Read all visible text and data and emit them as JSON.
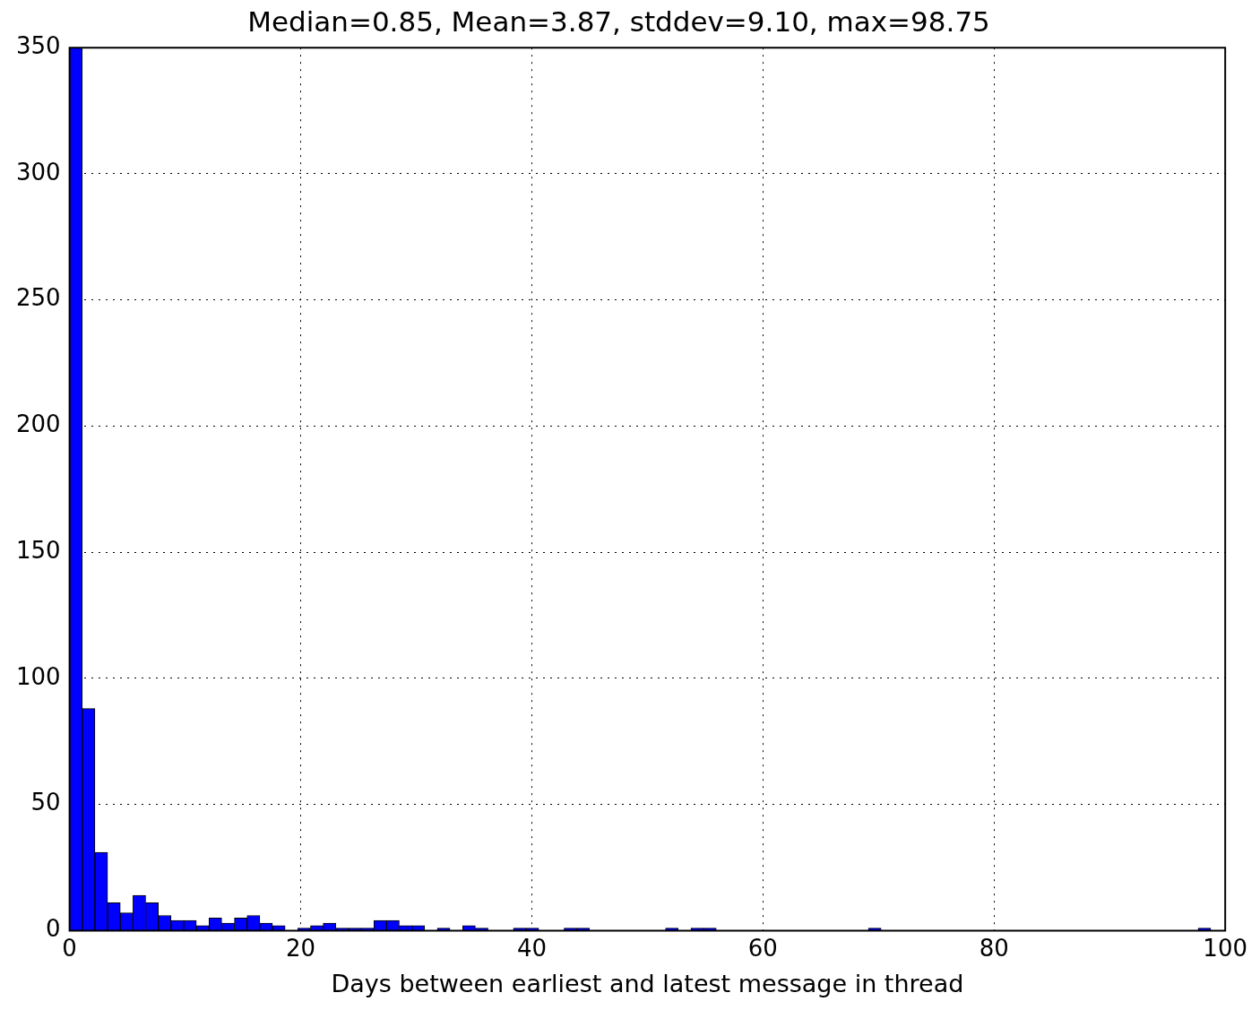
{
  "chart_data": {
    "type": "histogram",
    "title": "Median=0.85, Mean=3.87, stddev=9.10, max=98.75",
    "xlabel": "Days between earliest and latest message in thread",
    "bins": [
      0,
      1.0972,
      2.1944,
      3.2917,
      4.3889,
      5.4861,
      6.5833,
      7.6806,
      8.7778,
      9.875,
      10.9722,
      12.0694,
      13.1667,
      14.2639,
      15.3611,
      16.4583,
      17.5556,
      18.6528,
      19.75,
      20.8472,
      21.9444,
      23.0417,
      24.1389,
      25.2361,
      26.3333,
      27.4306,
      28.5278,
      29.625,
      30.7222,
      31.8194,
      32.9167,
      34.0139,
      35.1111,
      36.2083,
      37.3056,
      38.4028,
      39.5,
      40.5972,
      41.6944,
      42.7917,
      43.8889,
      44.9861,
      46.0833,
      47.1806,
      48.2778,
      49.375,
      50.4722,
      51.5694,
      52.6667,
      53.7639,
      54.8611,
      55.9583,
      57.0556,
      58.1528,
      59.25,
      60.3472,
      61.4444,
      62.5417,
      63.6389,
      64.7361,
      65.8333,
      66.9306,
      68.0278,
      69.125,
      70.2222,
      71.3194,
      72.4167,
      73.5139,
      74.6111,
      75.7083,
      76.8056,
      77.9028,
      79,
      80.0972,
      81.1944,
      82.2917,
      83.3889,
      84.4861,
      85.5833,
      86.6806,
      87.7778,
      88.875,
      89.9722,
      91.0694,
      92.1667,
      93.2639,
      94.3611,
      95.4583,
      96.5556,
      97.6528,
      98.75
    ],
    "values": [
      350,
      88,
      31,
      11,
      7,
      14,
      11,
      6,
      4,
      4,
      2,
      5,
      3,
      5,
      6,
      3,
      2,
      0,
      1,
      2,
      3,
      1,
      1,
      1,
      4,
      4,
      2,
      2,
      0,
      1,
      0,
      2,
      1,
      0,
      0,
      1,
      1,
      0,
      0,
      1,
      1,
      0,
      0,
      0,
      0,
      0,
      0,
      1,
      0,
      1,
      1,
      0,
      0,
      0,
      0,
      0,
      0,
      0,
      0,
      0,
      0,
      0,
      0,
      1,
      0,
      0,
      0,
      0,
      0,
      0,
      0,
      0,
      0,
      0,
      0,
      0,
      0,
      0,
      0,
      0,
      0,
      0,
      0,
      0,
      0,
      0,
      0,
      0,
      0,
      1
    ],
    "color": "#0000ff",
    "xlim": [
      0,
      100
    ],
    "xticks": [
      0,
      20,
      40,
      60,
      80,
      100
    ],
    "ylim": [
      0,
      350
    ],
    "yticks": [
      0,
      50,
      100,
      150,
      200,
      250,
      300,
      350
    ],
    "grid": true
  }
}
